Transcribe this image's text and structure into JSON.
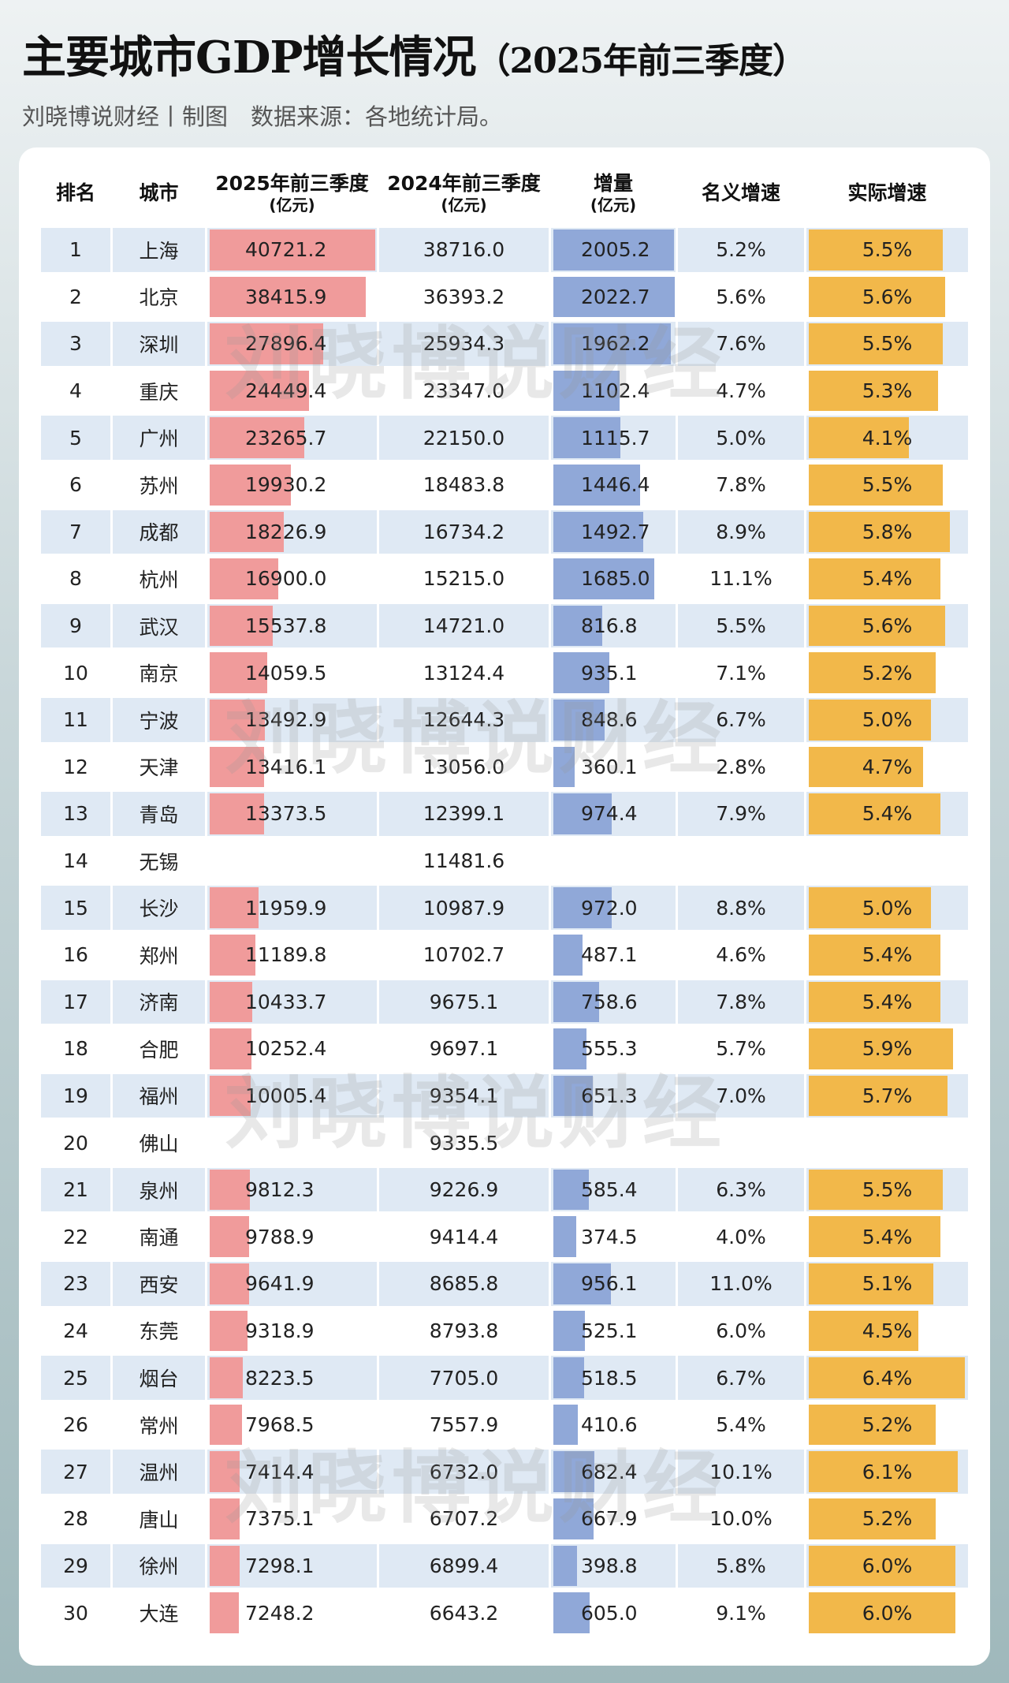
{
  "title": "主要城市GDP增长情况",
  "title_period": "（2025年前三季度）",
  "subtitle": "刘晓博说财经丨制图　数据来源：各地统计局。",
  "watermark": "刘晓博说财经",
  "colors": {
    "gdp_bar": "#f09b9b",
    "increment_bar": "#90a8d8",
    "real_growth_bar": "#f2b84a",
    "row_alt": "#dfe9f4"
  },
  "headers": [
    {
      "label": "排名",
      "unit": ""
    },
    {
      "label": "城市",
      "unit": ""
    },
    {
      "label": "2025年前三季度",
      "unit": "(亿元)"
    },
    {
      "label": "2024年前三季度",
      "unit": "(亿元)"
    },
    {
      "label": "增量",
      "unit": "(亿元)"
    },
    {
      "label": "名义增速",
      "unit": ""
    },
    {
      "label": "实际增速",
      "unit": ""
    }
  ],
  "rows": [
    [
      "1",
      "上海",
      "40721.2",
      "38716.0",
      "2005.2",
      "5.2%",
      "5.5%"
    ],
    [
      "2",
      "北京",
      "38415.9",
      "36393.2",
      "2022.7",
      "5.6%",
      "5.6%"
    ],
    [
      "3",
      "深圳",
      "27896.4",
      "25934.3",
      "1962.2",
      "7.6%",
      "5.5%"
    ],
    [
      "4",
      "重庆",
      "24449.4",
      "23347.0",
      "1102.4",
      "4.7%",
      "5.3%"
    ],
    [
      "5",
      "广州",
      "23265.7",
      "22150.0",
      "1115.7",
      "5.0%",
      "4.1%"
    ],
    [
      "6",
      "苏州",
      "19930.2",
      "18483.8",
      "1446.4",
      "7.8%",
      "5.5%"
    ],
    [
      "7",
      "成都",
      "18226.9",
      "16734.2",
      "1492.7",
      "8.9%",
      "5.8%"
    ],
    [
      "8",
      "杭州",
      "16900.0",
      "15215.0",
      "1685.0",
      "11.1%",
      "5.4%"
    ],
    [
      "9",
      "武汉",
      "15537.8",
      "14721.0",
      "816.8",
      "5.5%",
      "5.6%"
    ],
    [
      "10",
      "南京",
      "14059.5",
      "13124.4",
      "935.1",
      "7.1%",
      "5.2%"
    ],
    [
      "11",
      "宁波",
      "13492.9",
      "12644.3",
      "848.6",
      "6.7%",
      "5.0%"
    ],
    [
      "12",
      "天津",
      "13416.1",
      "13056.0",
      "360.1",
      "2.8%",
      "4.7%"
    ],
    [
      "13",
      "青岛",
      "13373.5",
      "12399.1",
      "974.4",
      "7.9%",
      "5.4%"
    ],
    [
      "14",
      "无锡",
      "",
      "11481.6",
      "",
      "",
      ""
    ],
    [
      "15",
      "长沙",
      "11959.9",
      "10987.9",
      "972.0",
      "8.8%",
      "5.0%"
    ],
    [
      "16",
      "郑州",
      "11189.8",
      "10702.7",
      "487.1",
      "4.6%",
      "5.4%"
    ],
    [
      "17",
      "济南",
      "10433.7",
      "9675.1",
      "758.6",
      "7.8%",
      "5.4%"
    ],
    [
      "18",
      "合肥",
      "10252.4",
      "9697.1",
      "555.3",
      "5.7%",
      "5.9%"
    ],
    [
      "19",
      "福州",
      "10005.4",
      "9354.1",
      "651.3",
      "7.0%",
      "5.7%"
    ],
    [
      "20",
      "佛山",
      "",
      "9335.5",
      "",
      "",
      ""
    ],
    [
      "21",
      "泉州",
      "9812.3",
      "9226.9",
      "585.4",
      "6.3%",
      "5.5%"
    ],
    [
      "22",
      "南通",
      "9788.9",
      "9414.4",
      "374.5",
      "4.0%",
      "5.4%"
    ],
    [
      "23",
      "西安",
      "9641.9",
      "8685.8",
      "956.1",
      "11.0%",
      "5.1%"
    ],
    [
      "24",
      "东莞",
      "9318.9",
      "8793.8",
      "525.1",
      "6.0%",
      "4.5%"
    ],
    [
      "25",
      "烟台",
      "8223.5",
      "7705.0",
      "518.5",
      "6.7%",
      "6.4%"
    ],
    [
      "26",
      "常州",
      "7968.5",
      "7557.9",
      "410.6",
      "5.4%",
      "5.2%"
    ],
    [
      "27",
      "温州",
      "7414.4",
      "6732.0",
      "682.4",
      "10.1%",
      "6.1%"
    ],
    [
      "28",
      "唐山",
      "7375.1",
      "6707.2",
      "667.9",
      "10.0%",
      "5.2%"
    ],
    [
      "29",
      "徐州",
      "7298.1",
      "6899.4",
      "398.8",
      "5.8%",
      "6.0%"
    ],
    [
      "30",
      "大连",
      "7248.2",
      "6643.2",
      "605.0",
      "9.1%",
      "6.0%"
    ]
  ]
}
